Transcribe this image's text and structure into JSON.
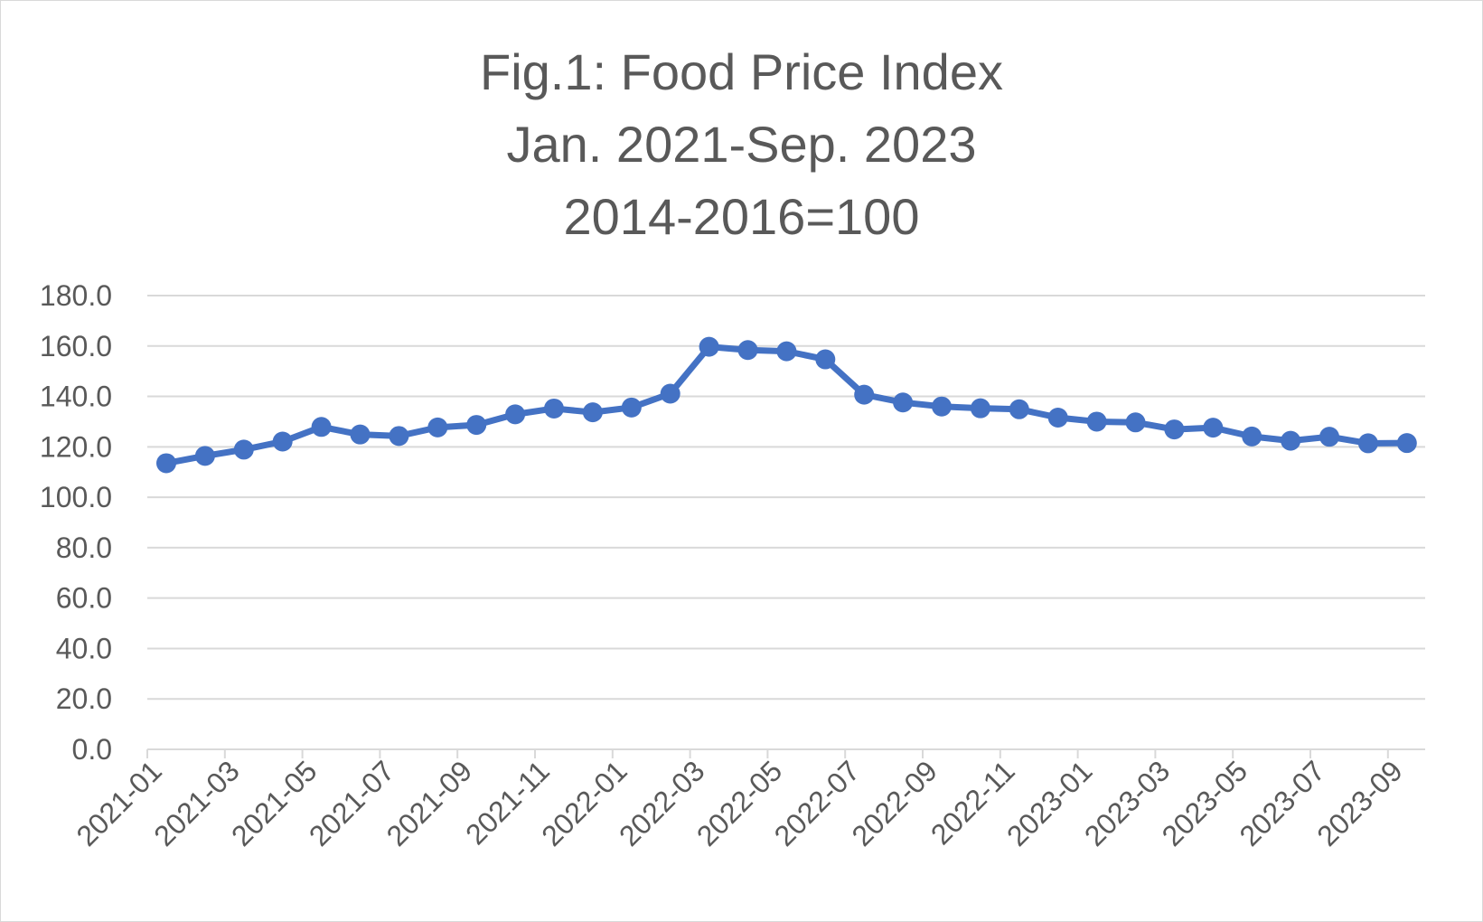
{
  "chart_data": {
    "type": "line",
    "title": "Fig.1: Food Price Index",
    "title_lines": [
      "Fig.1: Food Price Index",
      "Jan. 2021-Sep. 2023",
      "2014-2016=100"
    ],
    "xlabel": "",
    "ylabel": "",
    "ylim": [
      0,
      180
    ],
    "y_ticks": [
      "0.0",
      "20.0",
      "40.0",
      "60.0",
      "80.0",
      "100.0",
      "120.0",
      "140.0",
      "160.0",
      "180.0"
    ],
    "x": [
      "2021-01",
      "2021-02",
      "2021-03",
      "2021-04",
      "2021-05",
      "2021-06",
      "2021-07",
      "2021-08",
      "2021-09",
      "2021-10",
      "2021-11",
      "2021-12",
      "2022-01",
      "2022-02",
      "2022-03",
      "2022-04",
      "2022-05",
      "2022-06",
      "2022-07",
      "2022-08",
      "2022-09",
      "2022-10",
      "2022-11",
      "2022-12",
      "2023-01",
      "2023-02",
      "2023-03",
      "2023-04",
      "2023-05",
      "2023-06",
      "2023-07",
      "2023-08",
      "2023-09"
    ],
    "x_tick_labels": [
      "2021-01",
      "2021-03",
      "2021-05",
      "2021-07",
      "2021-09",
      "2021-11",
      "2022-01",
      "2022-03",
      "2022-05",
      "2022-07",
      "2022-09",
      "2022-11",
      "2023-01",
      "2023-03",
      "2023-05",
      "2023-07",
      "2023-09"
    ],
    "series": [
      {
        "values": [
          113.5,
          116.4,
          118.9,
          122.1,
          127.9,
          124.9,
          124.3,
          127.7,
          128.7,
          132.9,
          135.2,
          133.7,
          135.6,
          141.1,
          159.7,
          158.4,
          157.9,
          154.7,
          140.7,
          137.6,
          136.0,
          135.3,
          134.9,
          131.6,
          130.0,
          129.7,
          126.9,
          127.6,
          124.1,
          122.4,
          124.0,
          121.4,
          121.5
        ]
      }
    ],
    "grid": true,
    "legend": "none",
    "line_color": "#4472c4",
    "grid_color": "#d9d9d9",
    "text_color": "#595959"
  }
}
